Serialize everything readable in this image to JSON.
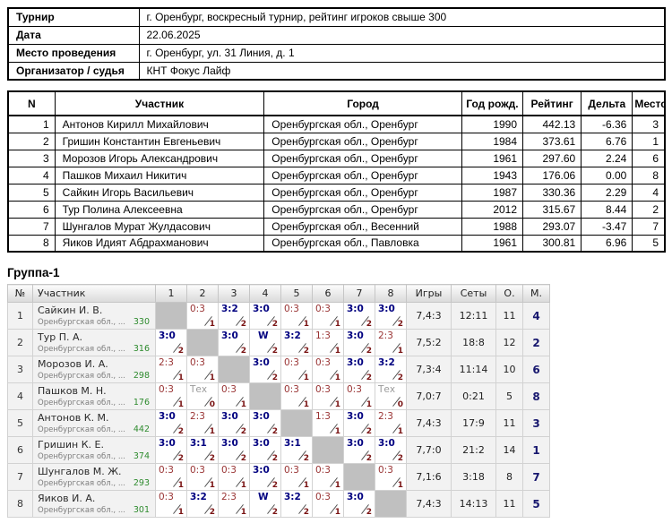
{
  "info": {
    "rows": [
      {
        "label": "Турнир",
        "value": "г. Оренбург, воскресный турнир, рейтинг игроков свыше 300"
      },
      {
        "label": "Дата",
        "value": "22.06.2025"
      },
      {
        "label": "Место проведения",
        "value": "г. Оренбург, ул. 31 Линия, д. 1"
      },
      {
        "label": "Организатор / судья",
        "value": "КНТ Фокус Лайф"
      }
    ]
  },
  "participants": {
    "headers": [
      "N",
      "Участник",
      "Город",
      "Год рожд.",
      "Рейтинг",
      "Дельта",
      "Место"
    ],
    "rows": [
      [
        "1",
        "Антонов Кирилл Михайлович",
        "Оренбургская обл., Оренбург",
        "1990",
        "442.13",
        "-6.36",
        "3"
      ],
      [
        "2",
        "Гришин Константин Евгеньевич",
        "Оренбургская обл., Оренбург",
        "1984",
        "373.61",
        "6.76",
        "1"
      ],
      [
        "3",
        "Морозов Игорь Александрович",
        "Оренбургская обл., Оренбург",
        "1961",
        "297.60",
        "2.24",
        "6"
      ],
      [
        "4",
        "Пашков Михаил Никитич",
        "Оренбургская обл., Оренбург",
        "1943",
        "176.06",
        "0.00",
        "8"
      ],
      [
        "5",
        "Сайкин Игорь Васильевич",
        "Оренбургская обл., Оренбург",
        "1987",
        "330.36",
        "2.29",
        "4"
      ],
      [
        "6",
        "Тур Полина Алексеевна",
        "Оренбургская обл., Оренбург",
        "2012",
        "315.67",
        "8.44",
        "2"
      ],
      [
        "7",
        "Шунгалов Мурат Жулдасович",
        "Оренбургская обл., Весенний",
        "1988",
        "293.07",
        "-3.47",
        "7"
      ],
      [
        "8",
        "Яиков Идият Абдрахманович",
        "Оренбургская обл., Павловка",
        "1961",
        "300.81",
        "6.96",
        "5"
      ]
    ]
  },
  "group": {
    "title": "Группа-1",
    "headers": [
      "№",
      "Участник",
      "1",
      "2",
      "3",
      "4",
      "5",
      "6",
      "7",
      "8",
      "Игры",
      "Сеты",
      "О.",
      "М."
    ],
    "rows": [
      {
        "num": "1",
        "name": "Сайкин И. В.",
        "region": "Оренбургская обл., ...",
        "rating": "330",
        "cells": [
          {
            "type": "self"
          },
          {
            "type": "loss",
            "score": "0:3",
            "points": "1"
          },
          {
            "type": "win",
            "score": "3:2",
            "points": "2"
          },
          {
            "type": "win",
            "score": "3:0",
            "points": "2"
          },
          {
            "type": "loss",
            "score": "0:3",
            "points": "1"
          },
          {
            "type": "loss",
            "score": "0:3",
            "points": "1"
          },
          {
            "type": "win",
            "score": "3:0",
            "points": "2"
          },
          {
            "type": "win",
            "score": "3:0",
            "points": "2"
          }
        ],
        "games": "7,4:3",
        "sets": "12:11",
        "o": "11",
        "m": "4"
      },
      {
        "num": "2",
        "name": "Тур П. А.",
        "region": "Оренбургская обл., ...",
        "rating": "316",
        "cells": [
          {
            "type": "win",
            "score": "3:0",
            "points": "2"
          },
          {
            "type": "self"
          },
          {
            "type": "win",
            "score": "3:0",
            "points": "2"
          },
          {
            "type": "wo",
            "score": "W",
            "points": "2"
          },
          {
            "type": "win",
            "score": "3:2",
            "points": "2"
          },
          {
            "type": "loss",
            "score": "1:3",
            "points": "1"
          },
          {
            "type": "win",
            "score": "3:0",
            "points": "2"
          },
          {
            "type": "loss",
            "score": "2:3",
            "points": "1"
          }
        ],
        "games": "7,5:2",
        "sets": "18:8",
        "o": "12",
        "m": "2"
      },
      {
        "num": "3",
        "name": "Морозов И. А.",
        "region": "Оренбургская обл., ...",
        "rating": "298",
        "cells": [
          {
            "type": "loss",
            "score": "2:3",
            "points": "1"
          },
          {
            "type": "loss",
            "score": "0:3",
            "points": "1"
          },
          {
            "type": "self"
          },
          {
            "type": "win",
            "score": "3:0",
            "points": "2"
          },
          {
            "type": "loss",
            "score": "0:3",
            "points": "1"
          },
          {
            "type": "loss",
            "score": "0:3",
            "points": "1"
          },
          {
            "type": "win",
            "score": "3:0",
            "points": "2"
          },
          {
            "type": "win",
            "score": "3:2",
            "points": "2"
          }
        ],
        "games": "7,3:4",
        "sets": "11:14",
        "o": "10",
        "m": "6"
      },
      {
        "num": "4",
        "name": "Пашков М. Н.",
        "region": "Оренбургская обл., ...",
        "rating": "176",
        "cells": [
          {
            "type": "loss",
            "score": "0:3",
            "points": "1"
          },
          {
            "type": "tech",
            "score": "Тех",
            "points": "0"
          },
          {
            "type": "loss",
            "score": "0:3",
            "points": "1"
          },
          {
            "type": "self"
          },
          {
            "type": "loss",
            "score": "0:3",
            "points": "1"
          },
          {
            "type": "loss",
            "score": "0:3",
            "points": "1"
          },
          {
            "type": "loss",
            "score": "0:3",
            "points": "1"
          },
          {
            "type": "tech",
            "score": "Тех",
            "points": "0"
          }
        ],
        "games": "7,0:7",
        "sets": "0:21",
        "o": "5",
        "m": "8"
      },
      {
        "num": "5",
        "name": "Антонов К. М.",
        "region": "Оренбургская обл., ...",
        "rating": "442",
        "cells": [
          {
            "type": "win",
            "score": "3:0",
            "points": "2"
          },
          {
            "type": "loss",
            "score": "2:3",
            "points": "1"
          },
          {
            "type": "win",
            "score": "3:0",
            "points": "2"
          },
          {
            "type": "win",
            "score": "3:0",
            "points": "2"
          },
          {
            "type": "self"
          },
          {
            "type": "loss",
            "score": "1:3",
            "points": "1"
          },
          {
            "type": "win",
            "score": "3:0",
            "points": "2"
          },
          {
            "type": "loss",
            "score": "2:3",
            "points": "1"
          }
        ],
        "games": "7,4:3",
        "sets": "17:9",
        "o": "11",
        "m": "3"
      },
      {
        "num": "6",
        "name": "Гришин К. Е.",
        "region": "Оренбургская обл., ...",
        "rating": "374",
        "cells": [
          {
            "type": "win",
            "score": "3:0",
            "points": "2"
          },
          {
            "type": "win",
            "score": "3:1",
            "points": "2"
          },
          {
            "type": "win",
            "score": "3:0",
            "points": "2"
          },
          {
            "type": "win",
            "score": "3:0",
            "points": "2"
          },
          {
            "type": "win",
            "score": "3:1",
            "points": "2"
          },
          {
            "type": "self"
          },
          {
            "type": "win",
            "score": "3:0",
            "points": "2"
          },
          {
            "type": "win",
            "score": "3:0",
            "points": "2"
          }
        ],
        "games": "7,7:0",
        "sets": "21:2",
        "o": "14",
        "m": "1"
      },
      {
        "num": "7",
        "name": "Шунгалов М. Ж.",
        "region": "Оренбургская обл., ...",
        "rating": "293",
        "cells": [
          {
            "type": "loss",
            "score": "0:3",
            "points": "1"
          },
          {
            "type": "loss",
            "score": "0:3",
            "points": "1"
          },
          {
            "type": "loss",
            "score": "0:3",
            "points": "1"
          },
          {
            "type": "win",
            "score": "3:0",
            "points": "2"
          },
          {
            "type": "loss",
            "score": "0:3",
            "points": "1"
          },
          {
            "type": "loss",
            "score": "0:3",
            "points": "1"
          },
          {
            "type": "self"
          },
          {
            "type": "loss",
            "score": "0:3",
            "points": "1"
          }
        ],
        "games": "7,1:6",
        "sets": "3:18",
        "o": "8",
        "m": "7"
      },
      {
        "num": "8",
        "name": "Яиков И. А.",
        "region": "Оренбургская обл., ...",
        "rating": "301",
        "cells": [
          {
            "type": "loss",
            "score": "0:3",
            "points": "1"
          },
          {
            "type": "win",
            "score": "3:2",
            "points": "2"
          },
          {
            "type": "loss",
            "score": "2:3",
            "points": "1"
          },
          {
            "type": "wo",
            "score": "W",
            "points": "2"
          },
          {
            "type": "win",
            "score": "3:2",
            "points": "2"
          },
          {
            "type": "loss",
            "score": "0:3",
            "points": "1"
          },
          {
            "type": "win",
            "score": "3:0",
            "points": "2"
          },
          {
            "type": "self"
          }
        ],
        "games": "7,4:3",
        "sets": "14:13",
        "o": "11",
        "m": "5"
      }
    ]
  },
  "colors": {
    "win_score": "#000080",
    "loss_score": "#993333",
    "match_points": "#7a1414",
    "tech_label": "#9a9a9a",
    "rating_green": "#2e8b2e",
    "place_navy": "#17176e",
    "self_cell_gray": "#c0c0c0"
  }
}
